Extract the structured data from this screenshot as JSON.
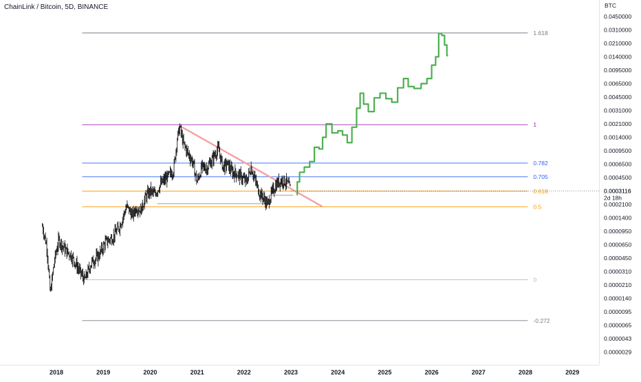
{
  "header": {
    "title": "ChainLink / Bitcoin, 5D, BINANCE"
  },
  "price_axis": {
    "currency": "BTC"
  },
  "chart_data": {
    "type": "line",
    "title": "ChainLink / Bitcoin, 5D, BINANCE",
    "y_scale": "log",
    "y_ticks": [
      "0.0450000",
      "0.0310000",
      "0.0210000",
      "0.0140000",
      "0.0095000",
      "0.0065000",
      "0.0045000",
      "0.0031000",
      "0.0021000",
      "0.0014000",
      "0.0009500",
      "0.0006500",
      "0.0004500",
      "0.0003116",
      "0.0002100",
      "0.0001400",
      "0.0000950",
      "0.0000650",
      "0.0000450",
      "0.0000310",
      "0.0000210",
      "0.0000140",
      "0.0000095",
      "0.0000065",
      "0.0000043",
      "0.0000029"
    ],
    "x_ticks": [
      "2018",
      "2019",
      "2020",
      "2021",
      "2022",
      "2023",
      "2024",
      "2025",
      "2026",
      "2027",
      "2028",
      "2029"
    ],
    "last_price": {
      "value": "0.0003116",
      "countdown": "2d 18h",
      "date": 2023.0
    },
    "fib_levels": [
      {
        "label": "1.618",
        "price": 0.0284,
        "color": "#787b86"
      },
      {
        "label": "1",
        "price": 0.00205,
        "color": "#9c27b0"
      },
      {
        "label": "0.782",
        "price": 0.00067,
        "color": "#2962ff"
      },
      {
        "label": "0.705",
        "price": 0.00046,
        "color": "#2962ff"
      },
      {
        "label": "0.618",
        "price": 0.00031,
        "color": "#ff9800"
      },
      {
        "label": "0.5",
        "price": 0.000195,
        "color": "#ff9800"
      },
      {
        "label": "0",
        "price": 2.45e-05,
        "color": "#b2b5be"
      },
      {
        "label": "-0.272",
        "price": 7.4e-06,
        "color": "#787b86"
      }
    ],
    "series": [
      {
        "style": "candles",
        "color": "#000000",
        "points": [
          [
            2017.7,
            0.00011
          ],
          [
            2017.8,
            6e-05
          ],
          [
            2017.87,
            1.6e-05
          ],
          [
            2017.95,
            4e-05
          ],
          [
            2018.05,
            7.5e-05
          ],
          [
            2018.2,
            5.5e-05
          ],
          [
            2018.3,
            5e-05
          ],
          [
            2018.45,
            3.5e-05
          ],
          [
            2018.6,
            2.4e-05
          ],
          [
            2018.75,
            4e-05
          ],
          [
            2018.9,
            4.8e-05
          ],
          [
            2019.05,
            7e-05
          ],
          [
            2019.2,
            8e-05
          ],
          [
            2019.35,
            0.00011
          ],
          [
            2019.5,
            0.0002
          ],
          [
            2019.62,
            0.00015
          ],
          [
            2019.7,
            0.00019
          ],
          [
            2019.8,
            0.000175
          ],
          [
            2019.9,
            0.00026
          ],
          [
            2020.0,
            0.00031
          ],
          [
            2020.1,
            0.00028
          ],
          [
            2020.2,
            0.00036
          ],
          [
            2020.3,
            0.00042
          ],
          [
            2020.4,
            0.00047
          ],
          [
            2020.5,
            0.00056
          ],
          [
            2020.58,
            0.0014
          ],
          [
            2020.63,
            0.0019
          ],
          [
            2020.7,
            0.0012
          ],
          [
            2020.8,
            0.0009
          ],
          [
            2020.9,
            0.0007
          ],
          [
            2021.0,
            0.0004
          ],
          [
            2021.1,
            0.0006
          ],
          [
            2021.2,
            0.00058
          ],
          [
            2021.3,
            0.0007
          ],
          [
            2021.4,
            0.0009
          ],
          [
            2021.45,
            0.001
          ],
          [
            2021.55,
            0.0006
          ],
          [
            2021.65,
            0.00065
          ],
          [
            2021.75,
            0.00052
          ],
          [
            2021.85,
            0.0005
          ],
          [
            2021.95,
            0.00045
          ],
          [
            2022.05,
            0.0004
          ],
          [
            2022.15,
            0.0006
          ],
          [
            2022.22,
            0.00045
          ],
          [
            2022.32,
            0.0003
          ],
          [
            2022.42,
            0.00025
          ],
          [
            2022.5,
            0.00021
          ],
          [
            2022.6,
            0.0003
          ],
          [
            2022.7,
            0.00038
          ],
          [
            2022.8,
            0.00042
          ],
          [
            2022.9,
            0.0004
          ],
          [
            2023.0,
            0.00032
          ]
        ]
      },
      {
        "style": "projection",
        "color": "#4caf50",
        "points": [
          [
            2023.12,
            0.00028
          ],
          [
            2023.15,
            0.0004
          ],
          [
            2023.22,
            0.00052
          ],
          [
            2023.35,
            0.0006
          ],
          [
            2023.45,
            0.0007
          ],
          [
            2023.55,
            0.00105
          ],
          [
            2023.65,
            0.001
          ],
          [
            2023.7,
            0.0014
          ],
          [
            2023.8,
            0.0021
          ],
          [
            2023.95,
            0.0016
          ],
          [
            2024.05,
            0.0017
          ],
          [
            2024.15,
            0.0015
          ],
          [
            2024.25,
            0.0012
          ],
          [
            2024.35,
            0.0019
          ],
          [
            2024.45,
            0.0033
          ],
          [
            2024.5,
            0.005
          ],
          [
            2024.6,
            0.0037
          ],
          [
            2024.7,
            0.003
          ],
          [
            2024.85,
            0.0044
          ],
          [
            2024.95,
            0.005
          ],
          [
            2025.1,
            0.0043
          ],
          [
            2025.2,
            0.0039
          ],
          [
            2025.35,
            0.0058
          ],
          [
            2025.45,
            0.0075
          ],
          [
            2025.55,
            0.006
          ],
          [
            2025.7,
            0.0057
          ],
          [
            2025.85,
            0.0065
          ],
          [
            2025.95,
            0.0075
          ],
          [
            2026.05,
            0.011
          ],
          [
            2026.12,
            0.014
          ],
          [
            2026.18,
            0.028
          ],
          [
            2026.25,
            0.0265
          ],
          [
            2026.3,
            0.02
          ],
          [
            2026.35,
            0.0145
          ]
        ]
      }
    ],
    "drawings": [
      {
        "type": "trendline",
        "color": "#f4a3a3",
        "from": [
          2020.65,
          0.00195
        ],
        "to": [
          2023.65,
          0.0002
        ]
      },
      {
        "type": "hline",
        "color": "#9e9e9e",
        "from": [
          2020.15,
          0.000215
        ],
        "to": [
          2022.55,
          0.000215
        ]
      },
      {
        "type": "hline",
        "color": "#9e9e9e",
        "from": [
          2022.55,
          0.000275
        ],
        "to": [
          2023.05,
          0.000275
        ]
      }
    ]
  }
}
